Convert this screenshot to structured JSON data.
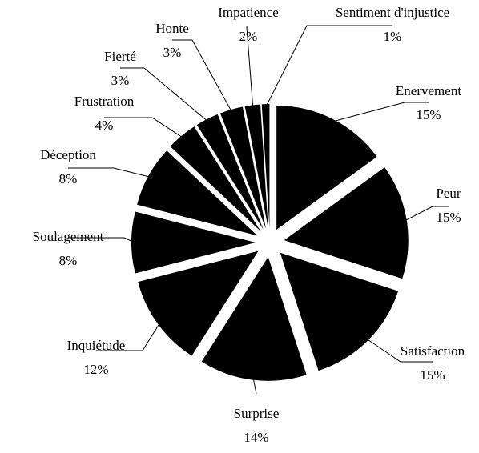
{
  "chart_data": {
    "type": "pie",
    "categories": [
      "Enervement",
      "Peur",
      "Satisfaction",
      "Surprise",
      "Inquiétude",
      "Soulagement",
      "Déception",
      "Frustration",
      "Fierté",
      "Honte",
      "Impatience",
      "Sentiment d'injustice"
    ],
    "values": [
      15,
      15,
      15,
      14,
      12,
      8,
      8,
      4,
      3,
      3,
      2,
      1
    ],
    "value_labels": [
      "15%",
      "15%",
      "15%",
      "14%",
      "12%",
      "8%",
      "8%",
      "4%",
      "3%",
      "3%",
      "2%",
      "1%"
    ],
    "color": "#000000"
  }
}
